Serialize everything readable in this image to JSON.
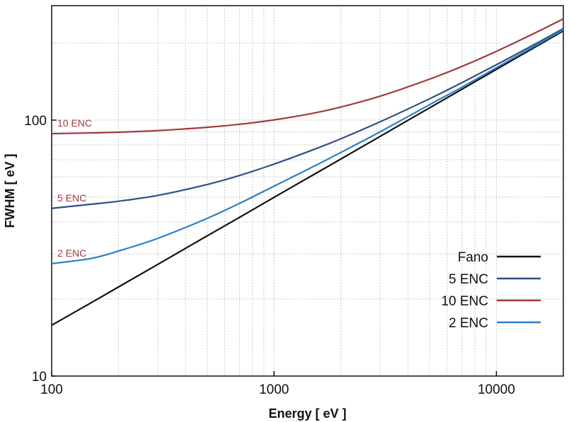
{
  "chart_data": {
    "type": "line",
    "title": "",
    "xlabel": "Energy  [ eV ]",
    "ylabel": "FWHM  [ eV ]",
    "xscale": "log",
    "yscale": "log",
    "xlim": [
      100,
      20000
    ],
    "ylim": [
      10,
      280
    ],
    "grid": true,
    "x_ticks": [
      {
        "value": 100,
        "label": "100"
      },
      {
        "value": 1000,
        "label": "1000"
      },
      {
        "value": 10000,
        "label": "10000"
      }
    ],
    "y_ticks": [
      {
        "value": 10,
        "label": "10"
      },
      {
        "value": 100,
        "label": "100"
      }
    ],
    "x": [
      100,
      150,
      200,
      300,
      500,
      700,
      1000,
      1500,
      2000,
      3000,
      5000,
      7000,
      10000,
      15000,
      20000
    ],
    "series": [
      {
        "name": "Fano",
        "color": "#111111",
        "values": [
          15.8,
          19.3,
          22.3,
          27.3,
          35.3,
          41.7,
          49.9,
          61.1,
          70.5,
          86.4,
          111.6,
          132.0,
          157.8,
          193.3,
          223.2
        ]
      },
      {
        "name": "5 ENC",
        "color": "#2f4f88",
        "values": [
          45.2,
          46.9,
          48.2,
          50.8,
          56.0,
          60.8,
          67.3,
          76.6,
          84.6,
          98.5,
          121.1,
          140.1,
          164.5,
          198.6,
          227.7
        ]
      },
      {
        "name": "10 ENC",
        "color": "#a33a3f",
        "values": [
          88.5,
          89.1,
          89.7,
          91.0,
          93.7,
          96.3,
          100.2,
          106.4,
          112.5,
          124.0,
          144.5,
          162.1,
          185.7,
          219.5,
          248.8
        ]
      },
      {
        "name": "2 ENC",
        "color": "#2d7fc4",
        "values": [
          27.5,
          28.8,
          30.8,
          34.5,
          41.3,
          47.3,
          55.2,
          65.8,
          74.8,
          90.0,
          114.8,
          134.5,
          160.2,
          195.5,
          225.2
        ]
      }
    ],
    "annotations": [
      {
        "text": "10 ENC",
        "series": "10 ENC",
        "color": "#a33a3f"
      },
      {
        "text": "5 ENC",
        "series": "5 ENC",
        "color": "#a33a3f"
      },
      {
        "text": "2 ENC",
        "series": "2 ENC",
        "color": "#a33a3f"
      }
    ],
    "legend_position": "bottom-right"
  }
}
